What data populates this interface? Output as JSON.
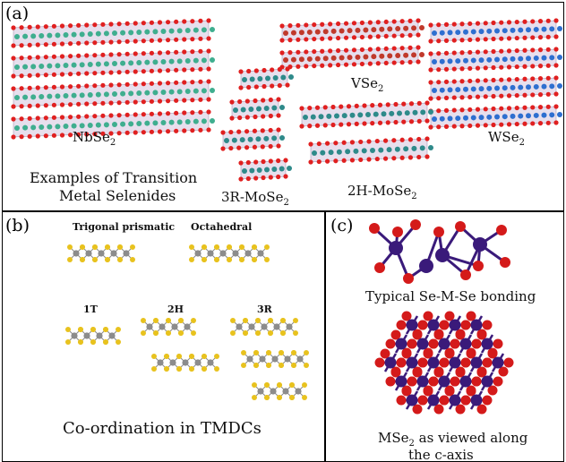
{
  "panel_a": {
    "label": "(a)",
    "materials": {
      "nbse2": "NbSe",
      "vse2": "VSe",
      "wse2": "WSe",
      "mose2_3r": "3R-MoSe",
      "mose2_2h": "2H-MoSe",
      "subscript": "2"
    },
    "caption_line1": "Examples of Transition",
    "caption_line2": "Metal Selenides",
    "colors": {
      "nbse2_metal": "#3fae8f",
      "vse2_metal": "#c0392b",
      "wse2_metal": "#2e6fd0",
      "mose2_metal": "#2e8a8a",
      "selenium": "#e02020"
    }
  },
  "panel_b": {
    "label": "(b)",
    "titles": {
      "trigonal": "Trigonal prismatic",
      "octahedral": "Octahedral"
    },
    "polytypes": {
      "t1": "1T",
      "h2": "2H",
      "r3": "3R"
    },
    "caption": "Co-ordination in TMDCs",
    "colors": {
      "metal": "#8c8c8c",
      "chalcogen": "#e8c21e"
    }
  },
  "panel_c": {
    "label": "(c)",
    "caption_top": "Typical Se-M-Se bonding",
    "caption_bottom_line1": "MSe",
    "caption_bottom_sub": "2",
    "caption_bottom_line1_rest": " as viewed along",
    "caption_bottom_line2": "the c-axis",
    "colors": {
      "metal": "#3a1a7a",
      "selenium": "#d41a1a"
    }
  }
}
